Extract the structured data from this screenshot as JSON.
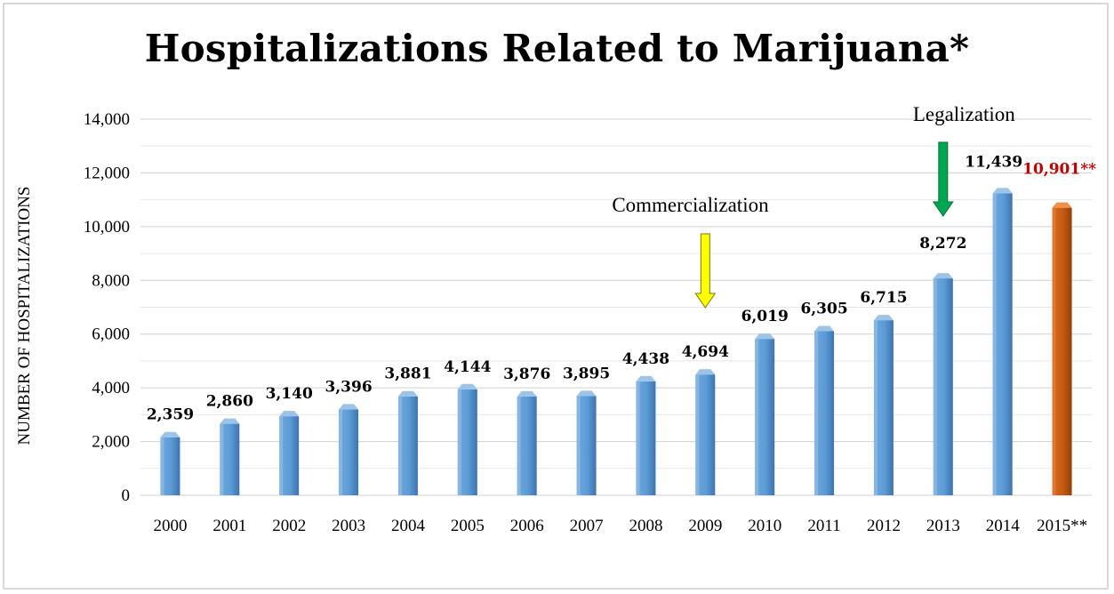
{
  "chart_data": {
    "type": "bar",
    "title": "Hospitalizations Related to Marijuana*",
    "xlabel": "",
    "ylabel": "NUMBER OF HOSPITALIZATIONS",
    "ylim": [
      0,
      14000
    ],
    "yticks": [
      0,
      2000,
      4000,
      6000,
      8000,
      10000,
      12000,
      14000
    ],
    "ytick_labels": [
      "0",
      "2,000",
      "4,000",
      "6,000",
      "8,000",
      "10,000",
      "12,000",
      "14,000"
    ],
    "grid": true,
    "categories": [
      "2000",
      "2001",
      "2002",
      "2003",
      "2004",
      "2005",
      "2006",
      "2007",
      "2008",
      "2009",
      "2010",
      "2011",
      "2012",
      "2013",
      "2014",
      "2015**"
    ],
    "values": [
      2359,
      2860,
      3140,
      3396,
      3881,
      4144,
      3876,
      3895,
      4438,
      4694,
      6019,
      6305,
      6715,
      8272,
      11439,
      10901
    ],
    "data_labels": [
      "2,359",
      "2,860",
      "3,140",
      "3,396",
      "3,881",
      "4,144",
      "3,876",
      "3,895",
      "4,438",
      "4,694",
      "6,019",
      "6,305",
      "6,715",
      "8,272",
      "11,439",
      "10,901**"
    ],
    "colors": {
      "bar": "#5b9bd5",
      "highlight_bar": "#c55a11",
      "highlight_label": "#c00000",
      "commercialization_arrow": "#ffff00",
      "legalization_arrow": "#00a651"
    },
    "highlight_index": 15,
    "annotations": [
      {
        "text": "Commercialization",
        "arrow_color": "yellow",
        "points_to": "2009"
      },
      {
        "text": "Legalization",
        "arrow_color": "green",
        "points_to": "2013"
      }
    ]
  }
}
